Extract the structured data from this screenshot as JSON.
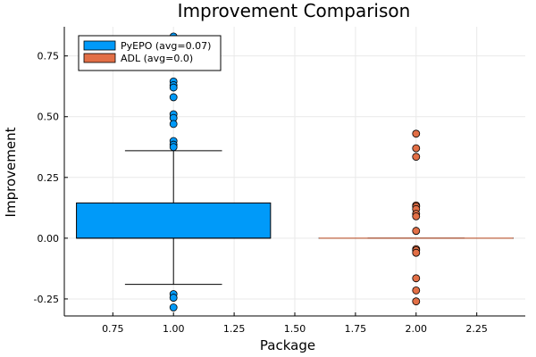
{
  "chart_data": {
    "type": "box",
    "title": "Improvement Comparison",
    "xlabel": "Package",
    "ylabel": "Improvement",
    "xlim": [
      0.55,
      2.45
    ],
    "ylim": [
      -0.32,
      0.87
    ],
    "xticks": [
      "0.75",
      "1.00",
      "1.25",
      "1.50",
      "1.75",
      "2.00",
      "2.25"
    ],
    "yticks": [
      "-0.25",
      "0.00",
      "0.25",
      "0.50",
      "0.75"
    ],
    "grid": true,
    "legend_position": "top-left",
    "series": [
      {
        "name": "PyEPO (avg=0.07)",
        "color": "#009af9",
        "position": 1.0,
        "box_range": [
          0.6,
          1.4
        ],
        "q1": 0.0,
        "median": 0.0,
        "q3": 0.145,
        "whisker_low": -0.19,
        "whisker_high": 0.36,
        "outliers": [
          0.83,
          0.645,
          0.63,
          0.62,
          0.58,
          0.51,
          0.495,
          0.47,
          0.4,
          0.385,
          0.375,
          -0.23,
          -0.245,
          -0.285
        ]
      },
      {
        "name": "ADL (avg=0.0)",
        "color": "#e26f46",
        "position": 2.0,
        "box_range": [
          1.6,
          2.4
        ],
        "q1": 0.0,
        "median": 0.0,
        "q3": 0.0,
        "whisker_low": 0.0,
        "whisker_high": 0.0,
        "outliers": [
          0.43,
          0.37,
          0.335,
          0.135,
          0.13,
          0.12,
          0.1,
          0.09,
          0.03,
          -0.045,
          -0.05,
          -0.06,
          -0.165,
          -0.215,
          -0.26
        ]
      }
    ]
  }
}
